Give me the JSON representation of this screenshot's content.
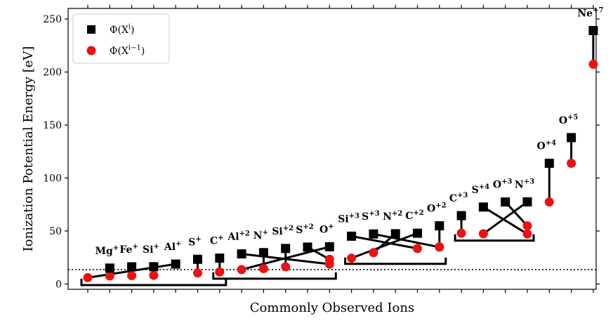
{
  "chart_data": {
    "type": "scatter",
    "xlabel": "Commonly Observed Ions",
    "ylabel": "Ionization Potential Energy [eV]",
    "ylim": [
      -5,
      260
    ],
    "yticks": [
      0,
      50,
      100,
      150,
      200,
      250
    ],
    "grid": false,
    "legend_position": "top-left",
    "reference_line": {
      "y": 13.6,
      "style": "dotted"
    },
    "legend": [
      {
        "label": "Φ(Xⁱ)",
        "text": "Φ(X",
        "sup": "i",
        "close": ")",
        "marker": "square",
        "color": "#000000"
      },
      {
        "label": "Φ(Xⁱ⁻¹)",
        "text": "Φ(X",
        "sup": "i−1",
        "close": ")",
        "marker": "circle",
        "color": "#ee1111"
      }
    ],
    "ions": [
      {
        "label": "Mg+",
        "base": "Mg",
        "charge": "+",
        "phi_i": 15.0,
        "phi_prev": 7.6,
        "x_sq": 1,
        "x_circ": 1,
        "group": 0
      },
      {
        "label": "Fe+",
        "base": "Fe",
        "charge": "+",
        "phi_i": 16.2,
        "phi_prev": 7.9,
        "x_sq": 2,
        "x_circ": 2,
        "group": 0
      },
      {
        "label": "Si+",
        "base": "Si",
        "charge": "+",
        "phi_i": 16.3,
        "phi_prev": 8.2,
        "x_sq": 3,
        "x_circ": 3,
        "group": 0
      },
      {
        "label": "Al+",
        "base": "Al",
        "charge": "+",
        "phi_i": 18.8,
        "phi_prev": 6.0,
        "x_sq": 4,
        "x_circ": 0,
        "group": 0
      },
      {
        "label": "S+",
        "base": "S",
        "charge": "+",
        "phi_i": 23.3,
        "phi_prev": 10.4,
        "x_sq": 5,
        "x_circ": 5,
        "group": 0
      },
      {
        "label": "C+",
        "base": "C",
        "charge": "+",
        "phi_i": 24.4,
        "phi_prev": 11.3,
        "x_sq": 6,
        "x_circ": 6,
        "group": 0
      },
      {
        "label": "Al+2",
        "base": "Al",
        "charge": "+2",
        "phi_i": 28.4,
        "phi_prev": 18.8,
        "x_sq": 7,
        "x_circ": 11,
        "group": 1
      },
      {
        "label": "N+",
        "base": "N",
        "charge": "+",
        "phi_i": 29.6,
        "phi_prev": 14.5,
        "x_sq": 8,
        "x_circ": 8,
        "group": 1
      },
      {
        "label": "Si+2",
        "base": "Si",
        "charge": "+2",
        "phi_i": 33.5,
        "phi_prev": 16.3,
        "x_sq": 9,
        "x_circ": 9,
        "group": 1
      },
      {
        "label": "S+2",
        "base": "S",
        "charge": "+2",
        "phi_i": 34.8,
        "phi_prev": 23.3,
        "x_sq": 10,
        "x_circ": 12,
        "group": 1
      },
      {
        "label": "O+",
        "base": "O",
        "charge": "+",
        "phi_i": 35.1,
        "phi_prev": 13.6,
        "x_sq": 12,
        "x_circ": 7,
        "group": 1
      },
      {
        "label": "Si+3",
        "base": "Si",
        "charge": "+3",
        "phi_i": 45.1,
        "phi_prev": 33.5,
        "x_sq": 13,
        "x_circ": 16,
        "group": 2
      },
      {
        "label": "S+3",
        "base": "S",
        "charge": "+3",
        "phi_i": 47.2,
        "phi_prev": 34.8,
        "x_sq": 14,
        "x_circ": 17,
        "group": 2
      },
      {
        "label": "N+2",
        "base": "N",
        "charge": "+2",
        "phi_i": 47.4,
        "phi_prev": 29.6,
        "x_sq": 15,
        "x_circ": 14,
        "group": 2
      },
      {
        "label": "C+2",
        "base": "C",
        "charge": "+2",
        "phi_i": 47.9,
        "phi_prev": 24.4,
        "x_sq": 16,
        "x_circ": 13,
        "group": 2
      },
      {
        "label": "O+2",
        "base": "O",
        "charge": "+2",
        "phi_i": 54.9,
        "phi_prev": 35.1,
        "x_sq": 17,
        "x_circ": 17,
        "group": 2
      },
      {
        "label": "C+3",
        "base": "C",
        "charge": "+3",
        "phi_i": 64.5,
        "phi_prev": 47.9,
        "x_sq": 18,
        "x_circ": 18,
        "group": 3
      },
      {
        "label": "S+4",
        "base": "S",
        "charge": "+4",
        "phi_i": 72.6,
        "phi_prev": 47.2,
        "x_sq": 19,
        "x_circ": 21,
        "group": 3
      },
      {
        "label": "O+3",
        "base": "O",
        "charge": "+3",
        "phi_i": 77.4,
        "phi_prev": 54.9,
        "x_sq": 20,
        "x_circ": 22,
        "group": 3
      },
      {
        "label": "N+3",
        "base": "N",
        "charge": "+3",
        "phi_i": 77.5,
        "phi_prev": 47.4,
        "x_sq": 22,
        "x_circ": 19,
        "group": 3
      },
      {
        "label": "O+4",
        "base": "O",
        "charge": "+4",
        "phi_i": 113.9,
        "phi_prev": 77.4,
        "x_sq": 23,
        "x_circ": 23,
        "group": -1
      },
      {
        "label": "O+5",
        "base": "O",
        "charge": "+5",
        "phi_i": 138.1,
        "phi_prev": 113.9,
        "x_sq": 24,
        "x_circ": 24,
        "group": -1
      },
      {
        "label": "Ne+7",
        "base": "Ne",
        "charge": "+7",
        "phi_i": 239.1,
        "phi_prev": 207.3,
        "x_sq": 25,
        "x_circ": 25,
        "group": -1
      }
    ],
    "groups": [
      {
        "from": 0,
        "to": 6,
        "y": -1
      },
      {
        "from": 6,
        "to": 11,
        "y": 5
      },
      {
        "from": 12,
        "to": 16,
        "y": 19
      },
      {
        "from": 17,
        "to": 20,
        "y": 41
      }
    ]
  }
}
